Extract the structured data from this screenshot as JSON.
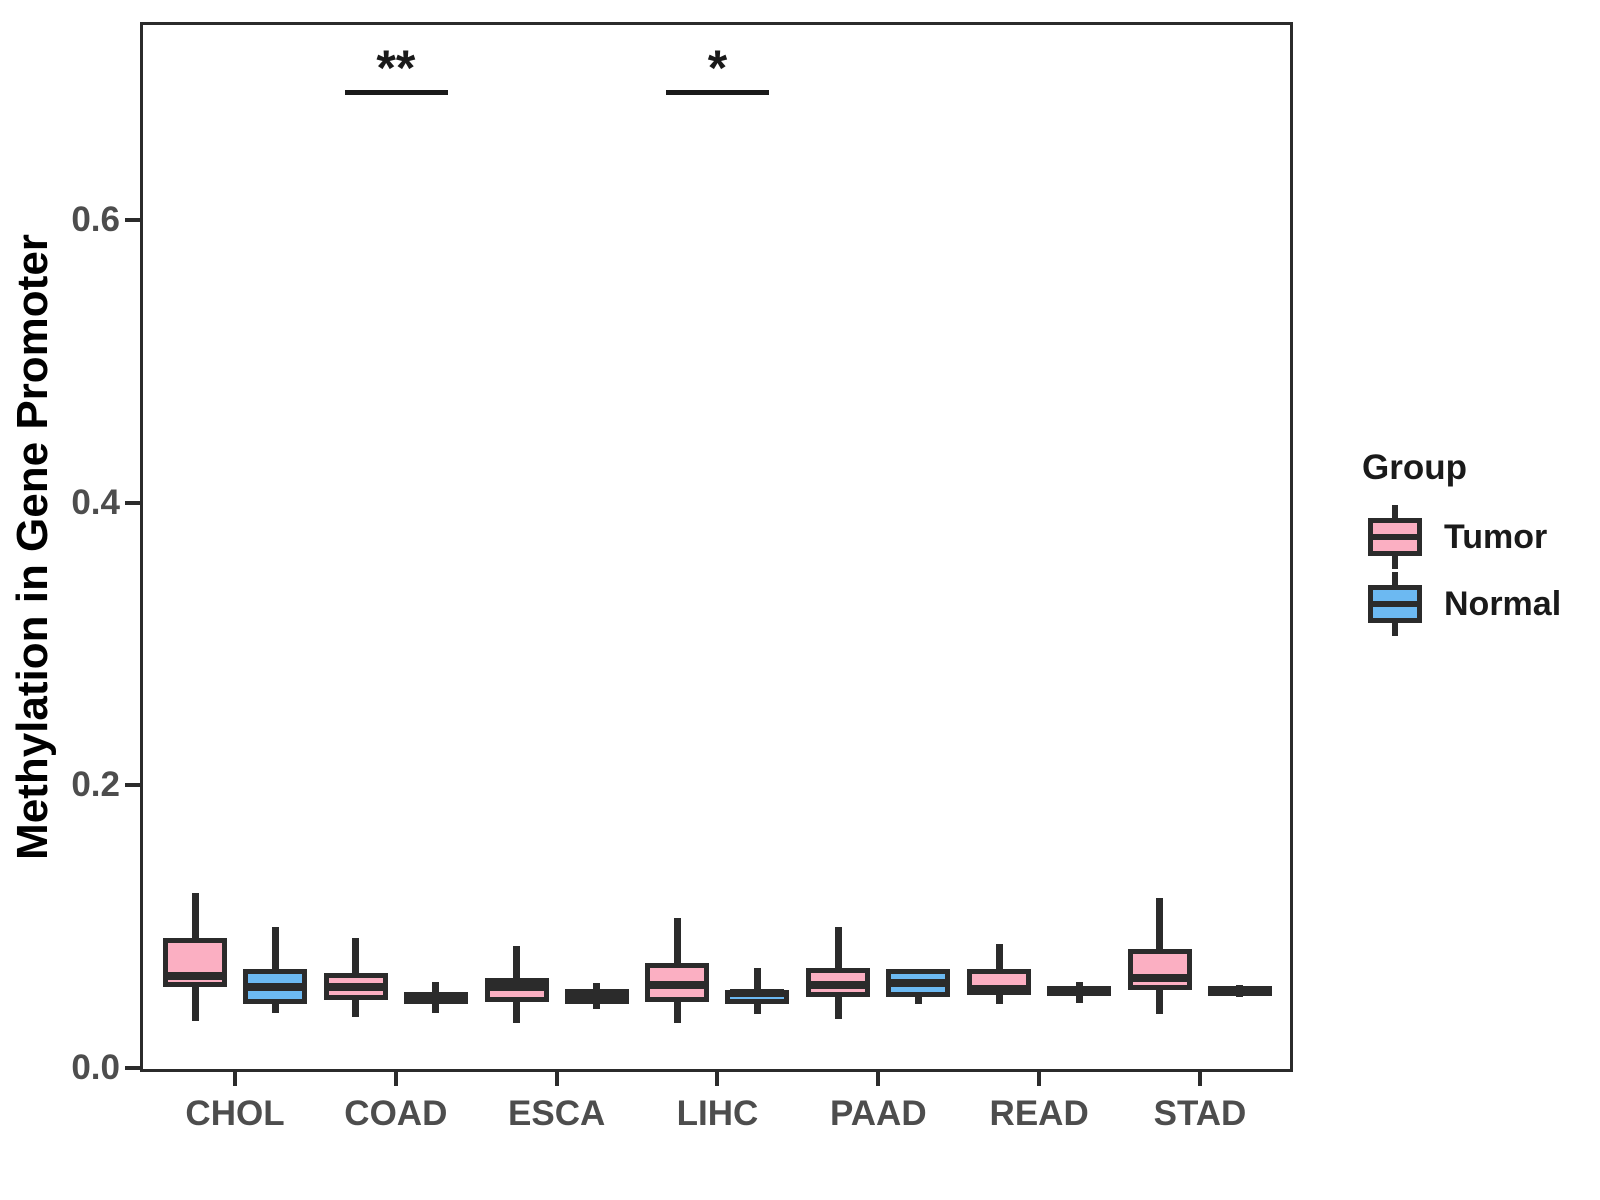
{
  "chart_data": {
    "type": "boxplot",
    "title": "",
    "xlabel": "",
    "ylabel": "Methylation in Gene Promoter",
    "legend_title": "Group",
    "legend_position": "right",
    "grid": false,
    "ylim": [
      0.0,
      0.74
    ],
    "y_ticks": [
      "0.0",
      "0.2",
      "0.4",
      "0.6"
    ],
    "categories": [
      "CHOL",
      "COAD",
      "ESCA",
      "LIHC",
      "PAAD",
      "READ",
      "STAD"
    ],
    "series": [
      {
        "name": "Tumor",
        "color": "#FBAFC2",
        "boxes": [
          {
            "min": 0.033,
            "q1": 0.057,
            "med": 0.065,
            "q3": 0.092,
            "max": 0.124
          },
          {
            "min": 0.036,
            "q1": 0.048,
            "med": 0.057,
            "q3": 0.067,
            "max": 0.092
          },
          {
            "min": 0.032,
            "q1": 0.047,
            "med": 0.057,
            "q3": 0.064,
            "max": 0.086
          },
          {
            "min": 0.032,
            "q1": 0.047,
            "med": 0.059,
            "q3": 0.074,
            "max": 0.106
          },
          {
            "min": 0.035,
            "q1": 0.05,
            "med": 0.059,
            "q3": 0.071,
            "max": 0.1
          },
          {
            "min": 0.045,
            "q1": 0.052,
            "med": 0.056,
            "q3": 0.07,
            "max": 0.088
          },
          {
            "min": 0.038,
            "q1": 0.055,
            "med": 0.064,
            "q3": 0.084,
            "max": 0.12
          }
        ]
      },
      {
        "name": "Normal",
        "color": "#6CB9F2",
        "boxes": [
          {
            "min": 0.039,
            "q1": 0.045,
            "med": 0.057,
            "q3": 0.07,
            "max": 0.1
          },
          {
            "min": 0.039,
            "q1": 0.045,
            "med": 0.05,
            "q3": 0.054,
            "max": 0.061
          },
          {
            "min": 0.042,
            "q1": 0.045,
            "med": 0.051,
            "q3": 0.056,
            "max": 0.06
          },
          {
            "min": 0.038,
            "q1": 0.045,
            "med": 0.053,
            "q3": 0.055,
            "max": 0.071
          },
          {
            "min": 0.045,
            "q1": 0.05,
            "med": 0.06,
            "q3": 0.07,
            "max": 0.07
          },
          {
            "min": 0.046,
            "q1": 0.051,
            "med": 0.054,
            "q3": 0.058,
            "max": 0.061
          },
          {
            "min": 0.05,
            "q1": 0.051,
            "med": 0.054,
            "q3": 0.058,
            "max": 0.059
          }
        ]
      }
    ],
    "annotations": [
      {
        "category": "COAD",
        "label": "**"
      },
      {
        "category": "LIHC",
        "label": "*"
      }
    ],
    "colors": {
      "tumor_fill": "#FBAFC2",
      "normal_fill": "#6CB9F2",
      "line": "#2b2b2b",
      "tick_text": "#4d4d4d",
      "text": "#1a1a1a",
      "background": "#ffffff"
    }
  }
}
